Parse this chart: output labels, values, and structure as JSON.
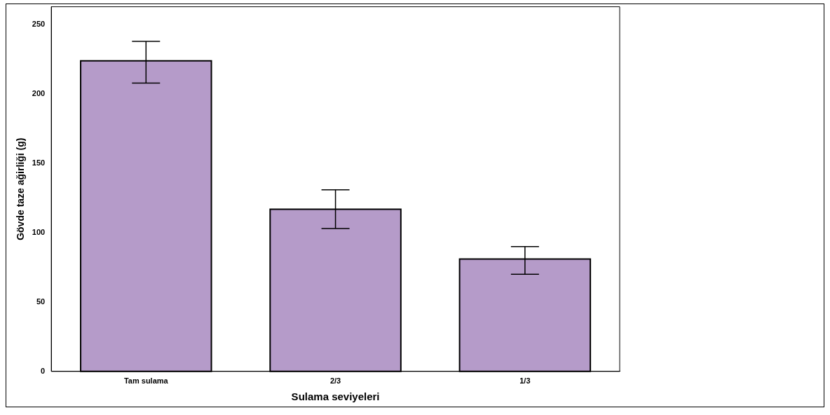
{
  "chart_data": {
    "type": "bar",
    "xlabel": "Sulama seviyeleri",
    "ylabel": "Gövde taze ağirliği (g)",
    "categories": [
      "Tam sulama",
      "2/3",
      "1/3"
    ],
    "values": [
      224,
      117,
      81
    ],
    "errors": [
      [
        208,
        238
      ],
      [
        103,
        131
      ],
      [
        70,
        90
      ]
    ],
    "color": "#b59bc9",
    "ylim": [
      0,
      263
    ],
    "yticks": [
      0,
      50,
      100,
      150,
      200,
      250
    ],
    "grid": false,
    "legend": false
  }
}
